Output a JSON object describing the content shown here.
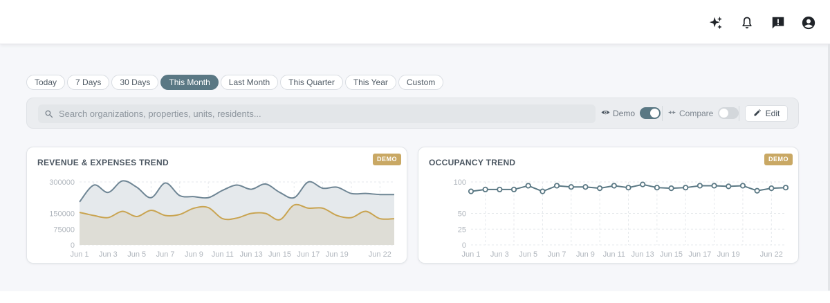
{
  "header": {
    "icons": [
      "sparkles-icon",
      "bell-icon",
      "feedback-icon",
      "account-icon"
    ]
  },
  "date_ranges": {
    "items": [
      "Today",
      "7 Days",
      "30 Days",
      "This Month",
      "Last Month",
      "This Quarter",
      "This Year",
      "Custom"
    ],
    "selected": "This Month"
  },
  "filters": {
    "search_placeholder": "Search organizations, properties, units, residents...",
    "demo_label": "Demo",
    "demo_on": true,
    "compare_label": "Compare",
    "compare_on": false,
    "edit_label": "Edit"
  },
  "colors": {
    "accent": "#5a7884",
    "revenue": "#6e8594",
    "expenses": "#c9a451",
    "badge": "#c9a864"
  },
  "chart_data": [
    {
      "type": "area",
      "title": "REVENUE & EXPENSES TREND",
      "badge": "DEMO",
      "x": [
        "Jun 1",
        "Jun 2",
        "Jun 3",
        "Jun 4",
        "Jun 5",
        "Jun 6",
        "Jun 7",
        "Jun 8",
        "Jun 9",
        "Jun 10",
        "Jun 11",
        "Jun 12",
        "Jun 13",
        "Jun 14",
        "Jun 15",
        "Jun 16",
        "Jun 17",
        "Jun 18",
        "Jun 19",
        "Jun 20",
        "Jun 21",
        "Jun 22",
        "Jun 23"
      ],
      "x_tick_labels": [
        "Jun 1",
        "Jun 3",
        "Jun 5",
        "Jun 7",
        "Jun 9",
        "Jun 11",
        "Jun 13",
        "Jun 15",
        "Jun 17",
        "Jun 19",
        "Jun 22"
      ],
      "y_ticks": [
        "0",
        "75000",
        "150000",
        "300000"
      ],
      "ylim": [
        0,
        300000
      ],
      "series": [
        {
          "values": [
            205000,
            285000,
            250000,
            305000,
            275000,
            225000,
            295000,
            235000,
            230000,
            225000,
            260000,
            285000,
            265000,
            290000,
            250000,
            225000,
            300000,
            270000,
            275000,
            245000,
            245000,
            240000,
            240000
          ]
        },
        {
          "values": [
            155000,
            140000,
            130000,
            160000,
            135000,
            165000,
            140000,
            145000,
            175000,
            178000,
            125000,
            128000,
            150000,
            150000,
            120000,
            190000,
            175000,
            175000,
            140000,
            130000,
            160000,
            125000,
            125000
          ]
        }
      ],
      "grid": true
    },
    {
      "type": "line",
      "title": "OCCUPANCY TREND",
      "badge": "DEMO",
      "x": [
        "Jun 1",
        "Jun 2",
        "Jun 3",
        "Jun 4",
        "Jun 5",
        "Jun 6",
        "Jun 7",
        "Jun 8",
        "Jun 9",
        "Jun 10",
        "Jun 11",
        "Jun 12",
        "Jun 13",
        "Jun 14",
        "Jun 15",
        "Jun 16",
        "Jun 17",
        "Jun 18",
        "Jun 19",
        "Jun 20",
        "Jun 21",
        "Jun 22",
        "Jun 23"
      ],
      "x_tick_labels": [
        "Jun 1",
        "Jun 3",
        "Jun 5",
        "Jun 7",
        "Jun 9",
        "Jun 11",
        "Jun 13",
        "Jun 15",
        "Jun 17",
        "Jun 19",
        "Jun 22"
      ],
      "y_ticks": [
        "0",
        "25",
        "50",
        "100"
      ],
      "ylim": [
        0,
        100
      ],
      "series": [
        {
          "values": [
            85,
            88,
            88,
            88,
            94,
            85,
            94,
            92,
            92,
            90,
            94,
            91,
            96,
            91,
            90,
            91,
            94,
            94,
            93,
            94,
            86,
            90,
            91
          ]
        }
      ],
      "grid": true
    }
  ]
}
